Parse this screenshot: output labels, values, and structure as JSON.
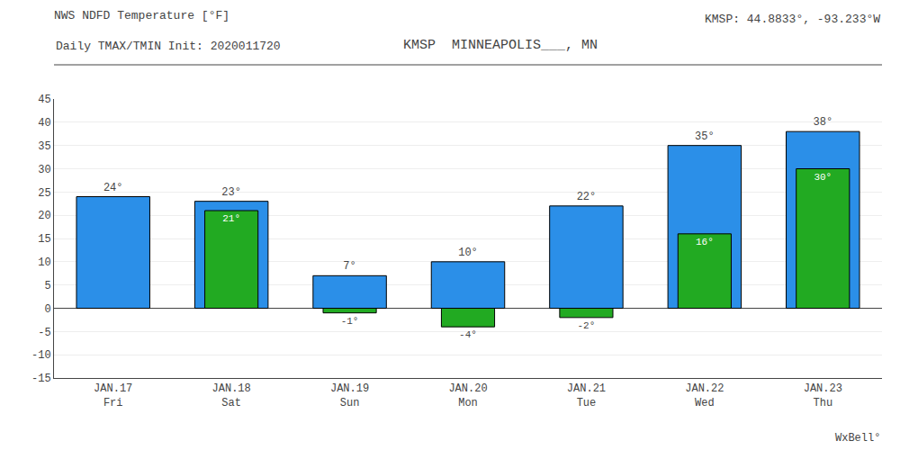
{
  "chart_data": {
    "type": "bar",
    "title": "NWS NDFD Temperature [°F]",
    "subtitle": "Daily TMAX/TMIN Init: 2020011720",
    "annotations": [
      "KMSP  MINNEAPOLIS___, MN",
      "KMSP: 44.8833°, -93.233°W",
      "WxBell°"
    ],
    "categories": [
      "JAN.17\nFri",
      "JAN.18\nSat",
      "JAN.19\nSun",
      "JAN.20\nMon",
      "JAN.21\nTue",
      "JAN.22\nWed",
      "JAN.23\nThu"
    ],
    "series": [
      {
        "color": "#2B8FE8",
        "values": [
          24,
          23,
          7,
          10,
          22,
          35,
          38
        ],
        "value_labels": [
          "24°",
          "23°",
          "7°",
          "10°",
          "22°",
          "35°",
          "38°"
        ]
      },
      {
        "color": "#22AA22",
        "values": [
          null,
          21,
          -1,
          -4,
          -2,
          16,
          30
        ],
        "value_labels": [
          null,
          "21°",
          "-1°",
          "-4°",
          "-2°",
          "16°",
          "30°"
        ]
      }
    ],
    "ylim": [
      -15,
      45
    ],
    "yticks": [
      -15,
      -10,
      -5,
      0,
      5,
      10,
      15,
      20,
      25,
      30,
      35,
      40,
      45
    ],
    "grid": true,
    "data_labels": true
  }
}
